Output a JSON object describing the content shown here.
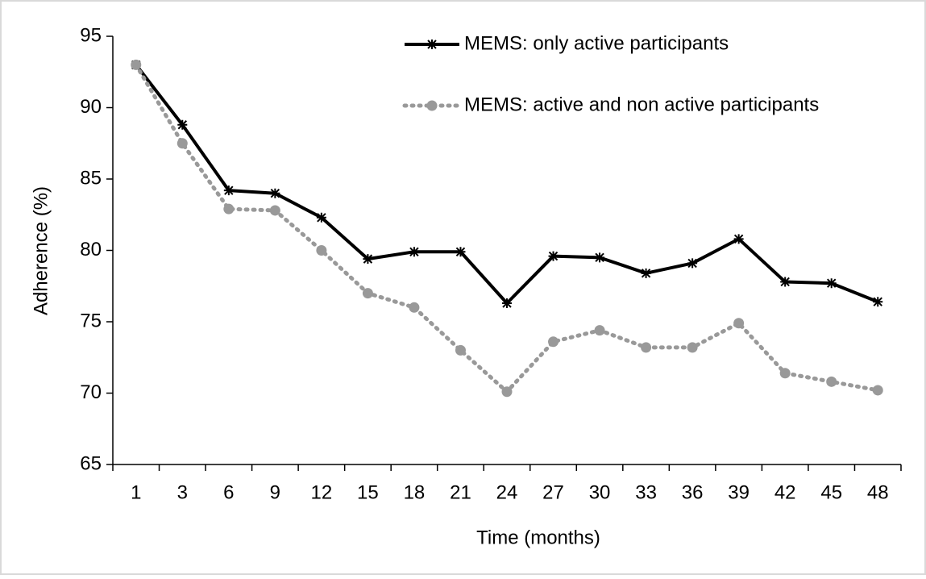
{
  "chart_data": {
    "type": "line",
    "x_label": "Time (months)",
    "y_label": "Adherence (%)",
    "categories": [
      "1",
      "3",
      "6",
      "9",
      "12",
      "15",
      "18",
      "21",
      "24",
      "27",
      "30",
      "33",
      "36",
      "39",
      "42",
      "45",
      "48"
    ],
    "series": [
      {
        "name": "MEMS: only active participants",
        "color": "#000000",
        "style": "solid",
        "marker": "star",
        "values": [
          93.0,
          88.8,
          84.2,
          84.0,
          82.3,
          79.4,
          79.9,
          79.9,
          76.3,
          79.6,
          79.5,
          78.4,
          79.1,
          80.8,
          77.8,
          77.7,
          76.4
        ]
      },
      {
        "name": "MEMS: active and non active participants",
        "color": "#999999",
        "style": "dotted",
        "marker": "circle",
        "values": [
          93.0,
          87.5,
          82.9,
          82.8,
          80.0,
          77.0,
          76.0,
          73.0,
          70.1,
          73.6,
          74.4,
          73.2,
          73.2,
          74.9,
          71.4,
          70.8,
          70.2
        ]
      }
    ],
    "ylim": [
      65,
      95
    ],
    "yticks": [
      65,
      70,
      75,
      80,
      85,
      90,
      95
    ],
    "grid": false,
    "legend": "top-right"
  }
}
